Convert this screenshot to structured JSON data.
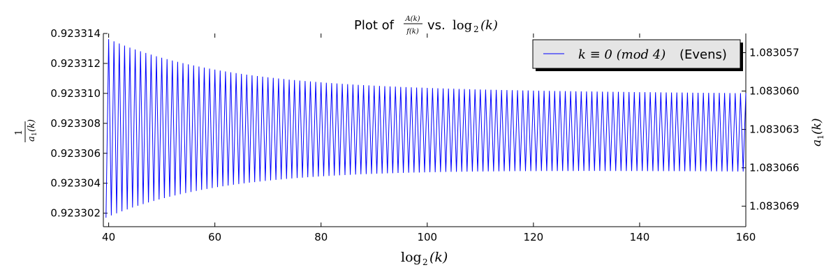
{
  "chart_data": {
    "type": "line",
    "title": {
      "prefix": "Plot of",
      "frac_num": "A(k)",
      "frac_den": "f(k)",
      "connector": "vs.",
      "log_text": "log",
      "log_sub": "2",
      "log_arg": "(k)"
    },
    "xlabel": {
      "log_text": "log",
      "log_sub": "2",
      "log_arg": "(k)"
    },
    "ylabel_left": {
      "num": "1",
      "den_a": "a",
      "den_sub": "1",
      "den_arg": "(k)"
    },
    "ylabel_right": {
      "a": "a",
      "sub": "1",
      "arg": "(k)"
    },
    "xlim": [
      39,
      160
    ],
    "ylim_left": [
      0.9233011,
      0.923314
    ],
    "ylim_right_inverted": [
      1.0830555,
      1.0830706
    ],
    "x_ticks": [
      40,
      60,
      80,
      100,
      120,
      140,
      160
    ],
    "y_ticks_left": [
      "0.923302",
      "0.923304",
      "0.923306",
      "0.923308",
      "0.923310",
      "0.923312",
      "0.923314"
    ],
    "y_ticks_left_values": [
      0.923302,
      0.923304,
      0.923306,
      0.923308,
      0.92331,
      0.923312,
      0.923314
    ],
    "y_ticks_right": [
      "1.083057",
      "1.083060",
      "1.083063",
      "1.083066",
      "1.083069"
    ],
    "y_ticks_right_values": [
      1.083057,
      1.08306,
      1.083063,
      1.083066,
      1.083069
    ],
    "series": [
      {
        "name": "k ≡ 0 (mod 4) (Evens)",
        "color": "#0000ff",
        "oscillation": {
          "x_start": 39.5,
          "x_end": 160,
          "period": 1.0,
          "center_start": 0.9233077,
          "center_end": 0.9233074,
          "amplitude_start": 6e-06,
          "amplitude_end": 2.6e-06,
          "decay_scale": 22
        }
      }
    ],
    "legend": {
      "position": "top-right",
      "entry_math": "k ≡ 0 (mod 4)",
      "entry_text": "(Evens)"
    },
    "grid": false
  }
}
